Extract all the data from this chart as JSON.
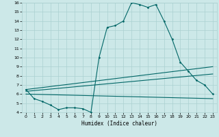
{
  "xlabel": "Humidex (Indice chaleur)",
  "bg_color": "#cce8e8",
  "grid_color": "#aad0d0",
  "line_color": "#006666",
  "xlim": [
    -0.5,
    23.5
  ],
  "ylim": [
    4,
    16
  ],
  "xticks": [
    0,
    1,
    2,
    3,
    4,
    5,
    6,
    7,
    8,
    9,
    10,
    11,
    12,
    13,
    14,
    15,
    16,
    17,
    18,
    19,
    20,
    21,
    22,
    23
  ],
  "yticks": [
    4,
    5,
    6,
    7,
    8,
    9,
    10,
    11,
    12,
    13,
    14,
    15,
    16
  ],
  "line1_x": [
    0,
    1,
    2,
    3,
    4,
    5,
    6,
    7,
    8,
    9,
    10,
    11,
    12,
    13,
    14,
    15,
    16,
    17,
    18,
    19,
    20,
    21,
    22,
    23
  ],
  "line1_y": [
    6.5,
    5.5,
    5.2,
    4.8,
    4.3,
    4.5,
    4.5,
    4.4,
    4.0,
    10.0,
    13.3,
    13.5,
    14.0,
    16.0,
    15.8,
    15.5,
    15.8,
    14.0,
    12.0,
    9.5,
    8.5,
    7.5,
    7.0,
    6.0
  ],
  "line2_x": [
    0,
    23
  ],
  "line2_y": [
    6.5,
    9.0
  ],
  "line3_x": [
    0,
    23
  ],
  "line3_y": [
    6.3,
    8.2
  ],
  "line4_x": [
    0,
    23
  ],
  "line4_y": [
    6.0,
    5.5
  ]
}
